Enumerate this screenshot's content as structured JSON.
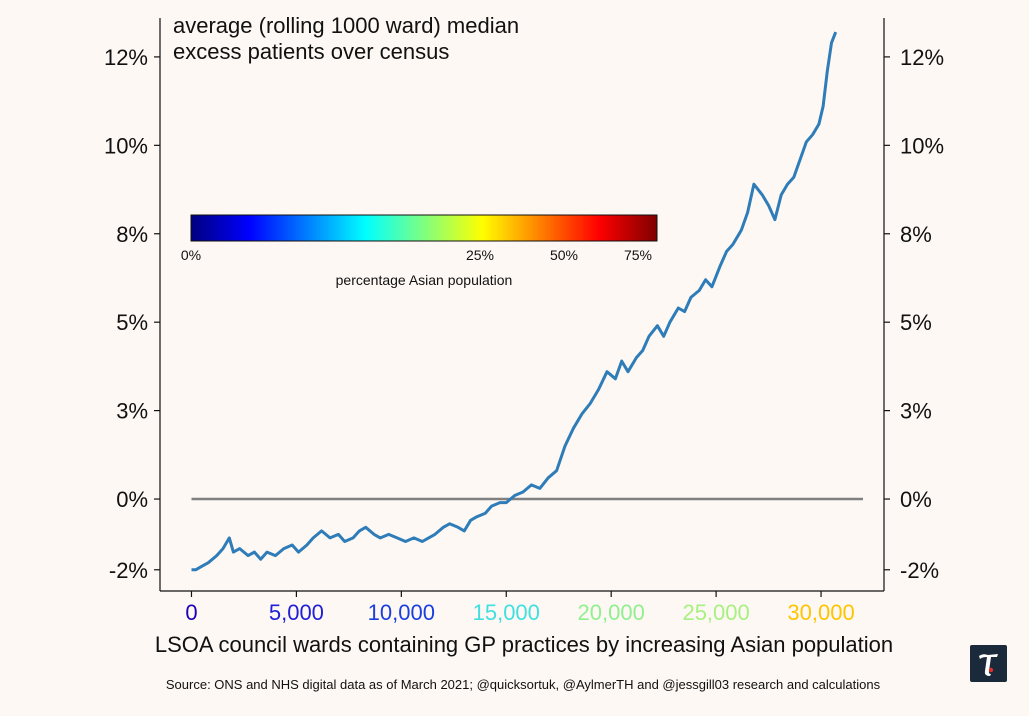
{
  "chart_data": {
    "type": "line",
    "title_lines": [
      "average (rolling 1000 ward) median",
      "excess patients over census"
    ],
    "xlabel": "LSOA council wards containing GP practices by increasing Asian population",
    "ylabel": "",
    "xlim": [
      -1500,
      33000
    ],
    "ylim": [
      -2.6,
      13.6
    ],
    "x_ticks": [
      {
        "value": 0,
        "label": "0",
        "color": "#1a00b8"
      },
      {
        "value": 5000,
        "label": "5,000",
        "color": "#2020d8"
      },
      {
        "value": 10000,
        "label": "10,000",
        "color": "#1a3fe0"
      },
      {
        "value": 15000,
        "label": "15,000",
        "color": "#40e0e0"
      },
      {
        "value": 20000,
        "label": "20,000",
        "color": "#90f090"
      },
      {
        "value": 25000,
        "label": "25,000",
        "color": "#a8f080"
      },
      {
        "value": 30000,
        "label": "30,000",
        "color": "#ffc400"
      }
    ],
    "y_ticks": [
      {
        "value": -2,
        "label": "-2%"
      },
      {
        "value": 0,
        "label": "0%"
      },
      {
        "value": 2.5,
        "label": "3%"
      },
      {
        "value": 5,
        "label": "5%"
      },
      {
        "value": 7.5,
        "label": "8%"
      },
      {
        "value": 10,
        "label": "10%"
      },
      {
        "value": 12.5,
        "label": "12%"
      }
    ],
    "reference_line": {
      "y": 0,
      "x_range": [
        0,
        32000
      ],
      "color": "#808080"
    },
    "series": [
      {
        "color": "#2e7cb8",
        "x": [
          0,
          200,
          500,
          800,
          1200,
          1500,
          1800,
          2000,
          2300,
          2700,
          3000,
          3300,
          3600,
          4000,
          4400,
          4800,
          5100,
          5500,
          5800,
          6200,
          6600,
          7000,
          7300,
          7700,
          8000,
          8300,
          8700,
          9000,
          9400,
          9800,
          10200,
          10600,
          11000,
          11300,
          11600,
          12000,
          12300,
          12700,
          13000,
          13300,
          13600,
          14000,
          14300,
          14700,
          15000,
          15400,
          15800,
          16200,
          16600,
          17000,
          17400,
          17800,
          18200,
          18600,
          19000,
          19400,
          19800,
          20200,
          20500,
          20800,
          21200,
          21500,
          21800,
          22200,
          22500,
          22800,
          23200,
          23500,
          23800,
          24200,
          24500,
          24800,
          25200,
          25500,
          25800,
          26200,
          26500,
          26800,
          27200,
          27500,
          27800,
          28100,
          28400,
          28700,
          29000,
          29300,
          29600,
          29900,
          30100,
          30300,
          30500,
          30700
        ],
        "values": [
          -2.0,
          -2.0,
          -1.9,
          -1.8,
          -1.6,
          -1.4,
          -1.1,
          -1.5,
          -1.4,
          -1.6,
          -1.5,
          -1.7,
          -1.5,
          -1.6,
          -1.4,
          -1.3,
          -1.5,
          -1.3,
          -1.1,
          -0.9,
          -1.1,
          -1.0,
          -1.2,
          -1.1,
          -0.9,
          -0.8,
          -1.0,
          -1.1,
          -1.0,
          -1.1,
          -1.2,
          -1.1,
          -1.2,
          -1.1,
          -1.0,
          -0.8,
          -0.7,
          -0.8,
          -0.9,
          -0.6,
          -0.5,
          -0.4,
          -0.2,
          -0.1,
          -0.1,
          0.1,
          0.2,
          0.4,
          0.3,
          0.6,
          0.8,
          1.5,
          2.0,
          2.4,
          2.7,
          3.1,
          3.6,
          3.4,
          3.9,
          3.6,
          4.0,
          4.2,
          4.6,
          4.9,
          4.6,
          5.0,
          5.4,
          5.3,
          5.7,
          5.9,
          6.2,
          6.0,
          6.6,
          7.0,
          7.2,
          7.6,
          8.1,
          8.9,
          8.6,
          8.3,
          7.9,
          8.6,
          8.9,
          9.1,
          9.6,
          10.1,
          10.3,
          10.6,
          11.1,
          12.1,
          12.9,
          13.2
        ]
      }
    ],
    "colorbar": {
      "label": "percentage Asian population",
      "ticks": [
        "0%",
        "25%",
        "50%",
        "75%"
      ],
      "colormap": "jet",
      "stops": [
        "#00007f",
        "#0000ff",
        "#007fff",
        "#00ffff",
        "#7fff7f",
        "#ffff00",
        "#ff7f00",
        "#ff0000",
        "#7f0000"
      ]
    },
    "source": "Source: ONS and NHS digital data as of March 2021; @quicksortuk, @AylmerTH and @jessgill03 research and calculations"
  },
  "logo": {
    "glyph": "T",
    "name": "t-logo"
  }
}
